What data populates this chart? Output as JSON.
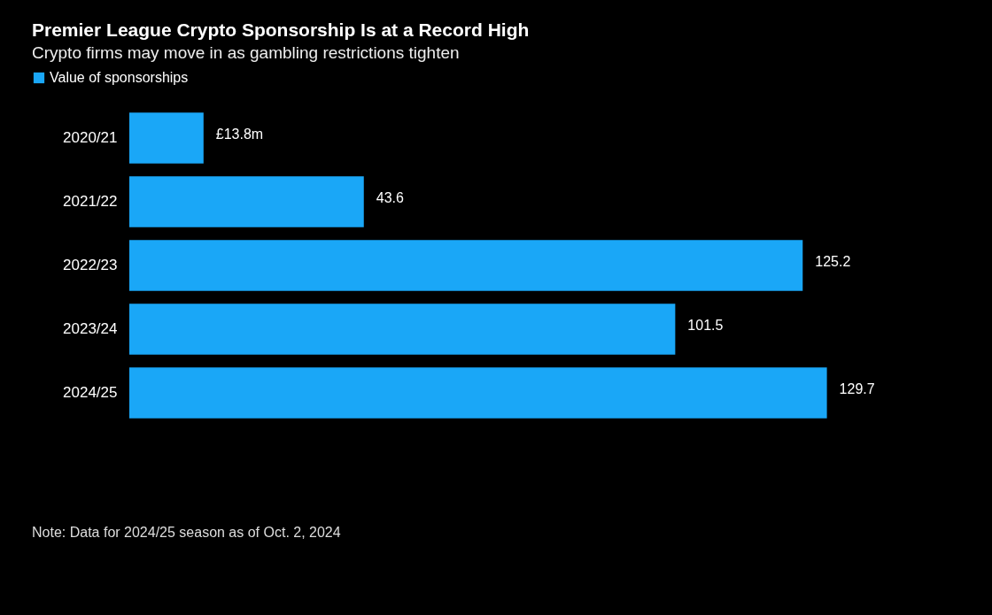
{
  "chart_data": {
    "type": "bar",
    "orientation": "horizontal",
    "title": "Premier League Crypto Sponsorship Is at a Record High",
    "subtitle": "Crypto firms may move in as gambling restrictions tighten",
    "categories": [
      "2020/21",
      "2021/22",
      "2022/23",
      "2023/24",
      "2024/25"
    ],
    "series": [
      {
        "name": "Value of sponsorships",
        "color": "#1aa7f7",
        "values": [
          13.8,
          43.6,
          125.2,
          101.5,
          129.7
        ],
        "value_labels": [
          "£13.8m",
          "43.6",
          "125.2",
          "101.5",
          "129.7"
        ]
      }
    ],
    "legend": "top left",
    "annotations": [
      "Note: Data for 2024/25 season as of Oct. 2, 2024"
    ]
  }
}
